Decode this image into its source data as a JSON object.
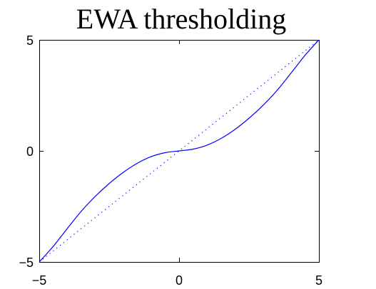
{
  "chart_data": {
    "type": "line",
    "title": "EWA thresholding",
    "xlabel": "",
    "ylabel": "",
    "xlim": [
      -5,
      5
    ],
    "ylim": [
      -5,
      5
    ],
    "xticks": [
      "−5",
      "0",
      "5"
    ],
    "yticks": [
      "5",
      "0",
      "−5"
    ],
    "xtick_values": [
      -5,
      0,
      5
    ],
    "ytick_values": [
      5,
      0,
      -5
    ],
    "grid": false,
    "series": [
      {
        "style": "solid",
        "color": "#0000ff",
        "x": [
          -5,
          -4.5,
          -4,
          -3.5,
          -3,
          -2.5,
          -2,
          -1.5,
          -1,
          -0.5,
          0,
          0.5,
          1,
          1.5,
          2,
          2.5,
          3,
          3.5,
          4,
          4.5,
          5
        ],
        "y": [
          -5,
          -4.3,
          -3.5,
          -2.72,
          -2.05,
          -1.47,
          -0.97,
          -0.56,
          -0.26,
          -0.08,
          0,
          0.08,
          0.26,
          0.56,
          0.97,
          1.47,
          2.05,
          2.72,
          3.5,
          4.3,
          5
        ]
      },
      {
        "style": "dotted",
        "color": "#0000ff",
        "x": [
          -5,
          5
        ],
        "y": [
          -5,
          5
        ]
      }
    ]
  }
}
